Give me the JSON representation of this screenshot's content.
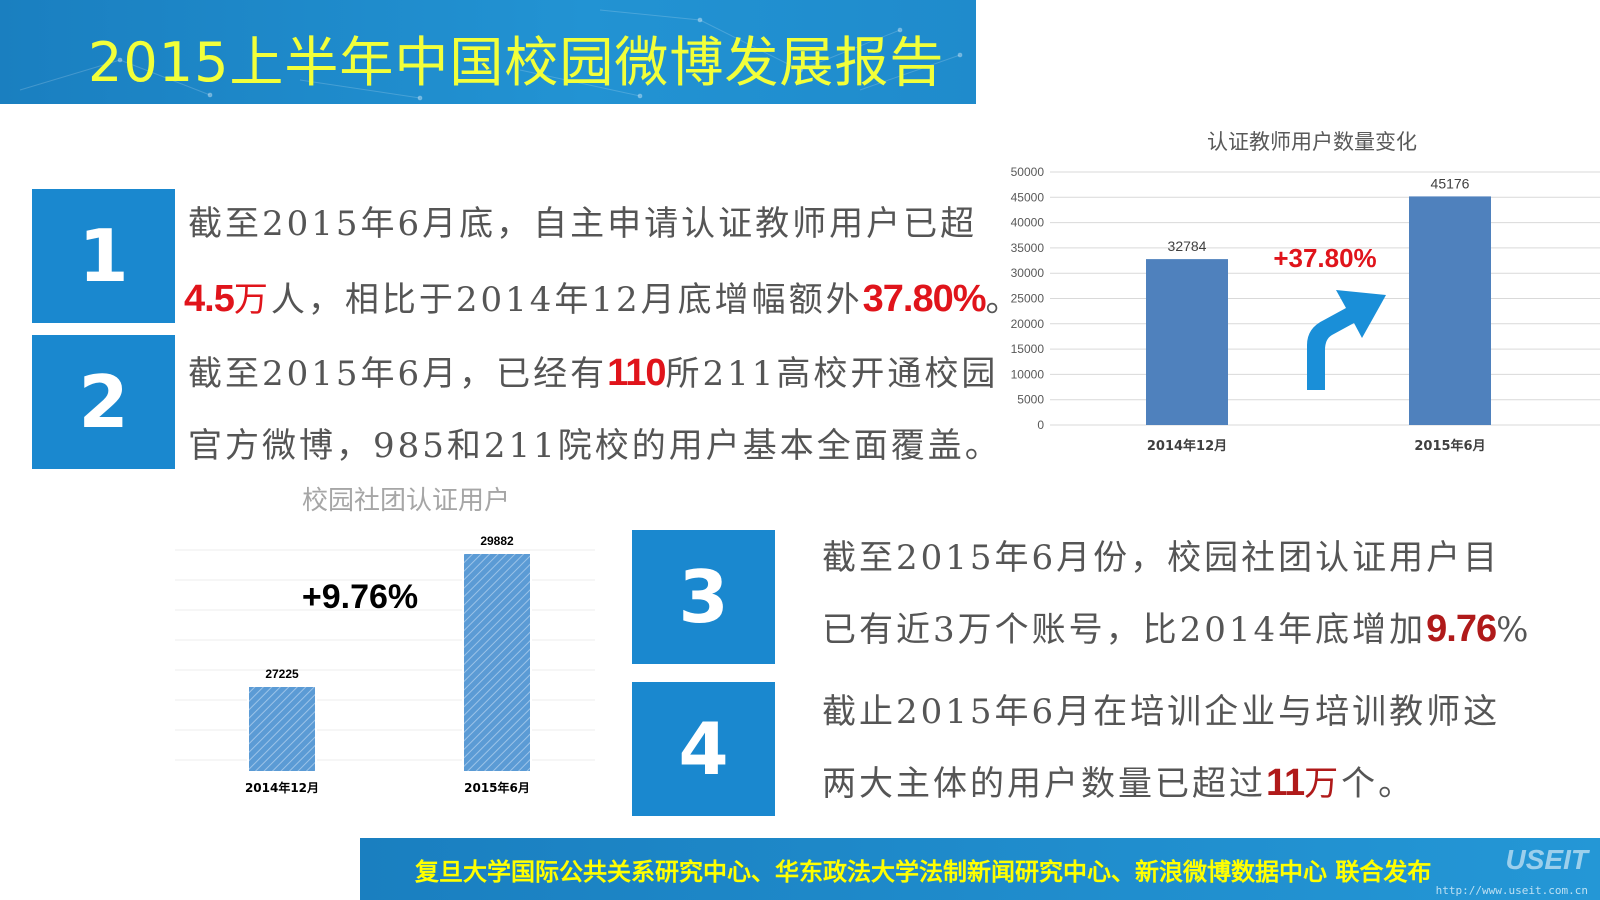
{
  "title": "2015上半年中国校园微博发展报告",
  "points": [
    {
      "number": "1",
      "line1": "截至2015年6月底，自主申请认证教师用户已超",
      "line2_highlight1": "4.5",
      "line2_red_unit": "万",
      "line2_mid": "人，相比于2014年12月底增幅额外",
      "line2_highlight2": "37.80%",
      "line2_end": "。"
    },
    {
      "number": "2",
      "line1_pre": "截至2015年6月，已经有",
      "line1_highlight": "110",
      "line1_post": "所211高校开通校园",
      "line2": "官方微博，985和211院校的用户基本全面覆盖。"
    },
    {
      "number": "3",
      "line1": "截至2015年6月份，校园社团认证用户目",
      "line2_pre": "已有近3万个账号，比2014年底增加",
      "line2_highlight": "9.76",
      "line2_post": "%"
    },
    {
      "number": "4",
      "line1": "截止2015年6月在培训企业与培训教师这",
      "line2_pre": "两大主体的用户数量已超过",
      "line2_highlight": "11",
      "line2_red_unit": "万",
      "line2_post": "个。"
    }
  ],
  "chart_data": [
    {
      "type": "bar",
      "title": "认证教师用户数量变化",
      "categories": [
        "2014年12月",
        "2015年6月"
      ],
      "values": [
        32784,
        45176
      ],
      "data_labels": [
        "32784",
        "45176"
      ],
      "ylim": [
        0,
        50000
      ],
      "yticks": [
        0,
        5000,
        10000,
        15000,
        20000,
        25000,
        30000,
        35000,
        40000,
        45000,
        50000
      ],
      "ytick_labels": [
        "0",
        "5000",
        "10000",
        "15000",
        "20000",
        "25000",
        "30000",
        "35000",
        "40000",
        "45000",
        "50000"
      ],
      "annotation": "+37.80%",
      "grid": true,
      "bar_color": "#4f81bd",
      "arrow_color": "#1a8fd8"
    },
    {
      "type": "bar",
      "title": "校园社团认证用户",
      "categories": [
        "2014年12月",
        "2015年6月"
      ],
      "values": [
        27225,
        29882
      ],
      "data_labels": [
        "27225",
        "29882"
      ],
      "ylim": [
        0,
        30000
      ],
      "annotation": "+9.76%",
      "grid": true,
      "bar_color": "#5b9bd5"
    }
  ],
  "footer": {
    "text": "复旦大学国际公共关系研究中心、华东政法大学法制新闻研究中心、新浪微博数据中心 联合发布",
    "watermark": "USEIT",
    "watermark_url": "http://www.useit.com.cn"
  },
  "colors": {
    "title_bar": "#1a7fc0",
    "title_text": "#f2ff3a",
    "number_box": "#1a88cf",
    "highlight_red": "#e0141b",
    "footer_text": "#ffff00"
  }
}
